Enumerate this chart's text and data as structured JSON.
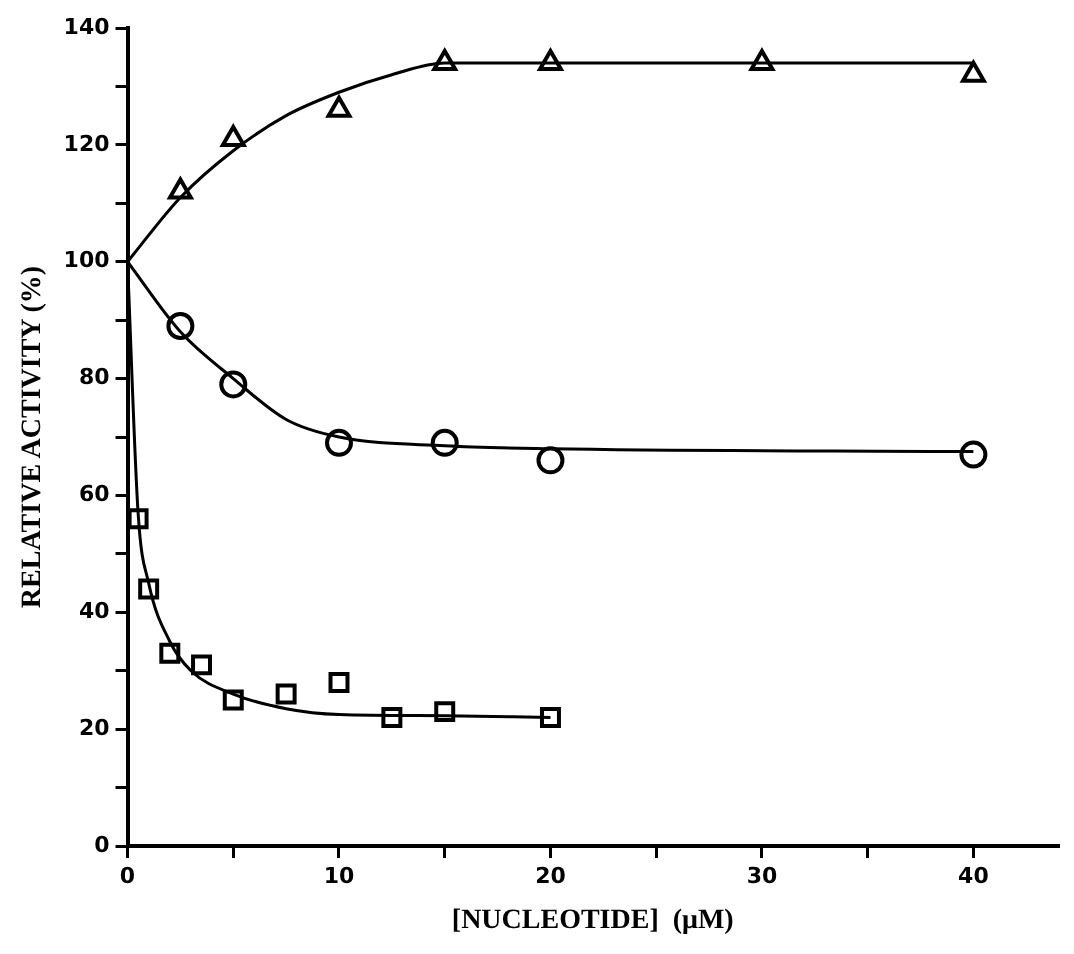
{
  "chart_data": {
    "type": "scatter",
    "xlabel": "[NUCLEOTIDE]  (μM)",
    "ylabel": "RELATIVE ACTIVITY (%)",
    "xlim": [
      0,
      44
    ],
    "ylim": [
      0,
      140
    ],
    "xticks": [
      0,
      {
        "value": 5,
        "label": null
      },
      10,
      {
        "value": 15,
        "label": null
      },
      20,
      {
        "value": 25,
        "label": null
      },
      30,
      {
        "value": 35,
        "label": null
      },
      40
    ],
    "yticks": [
      0,
      {
        "value": 10,
        "label": null
      },
      20,
      {
        "value": 30,
        "label": null
      },
      40,
      {
        "value": 50,
        "label": null
      },
      60,
      {
        "value": 70,
        "label": null
      },
      80,
      {
        "value": 90,
        "label": null
      },
      100,
      {
        "value": 110,
        "label": null
      },
      120,
      {
        "value": 130,
        "label": null
      },
      140
    ],
    "grid": false,
    "legend": false,
    "series": [
      {
        "marker": "triangle",
        "color": "#000000",
        "x": [
          2.5,
          5,
          10,
          15,
          20,
          30,
          40
        ],
        "values": [
          112,
          121,
          126,
          134,
          134,
          134,
          132
        ]
      },
      {
        "marker": "circle",
        "color": "#000000",
        "x": [
          2.5,
          5,
          10,
          15,
          20,
          40
        ],
        "values": [
          89,
          79,
          69,
          69,
          66,
          67
        ]
      },
      {
        "marker": "square",
        "color": "#000000",
        "x": [
          0.5,
          1,
          2,
          3.5,
          5,
          7.5,
          10,
          12.5,
          15,
          20
        ],
        "values": [
          56,
          44,
          33,
          31,
          25,
          26,
          28,
          22,
          23,
          22
        ]
      },
      {
        "type": "line",
        "marker": "none",
        "line_style": "solid",
        "color": "#000000",
        "x": [
          0,
          2.5,
          5,
          7.5,
          10,
          12.5,
          15,
          20,
          30,
          40
        ],
        "values": [
          100,
          111,
          119,
          125,
          129,
          132,
          134,
          134,
          134,
          134
        ]
      },
      {
        "type": "line",
        "marker": "none",
        "line_style": "solid",
        "color": "#000000",
        "x": [
          0,
          2.5,
          5,
          7.5,
          10,
          15,
          20,
          40
        ],
        "values": [
          100,
          88,
          80,
          73,
          70,
          68.5,
          68,
          67.5
        ]
      },
      {
        "type": "line",
        "marker": "none",
        "line_style": "solid",
        "color": "#000000",
        "x": [
          0,
          0.5,
          1,
          2,
          3,
          5,
          7.5,
          10,
          15,
          20
        ],
        "values": [
          100,
          57,
          45,
          35,
          30,
          26,
          23.5,
          22.5,
          22.3,
          22
        ]
      }
    ]
  }
}
